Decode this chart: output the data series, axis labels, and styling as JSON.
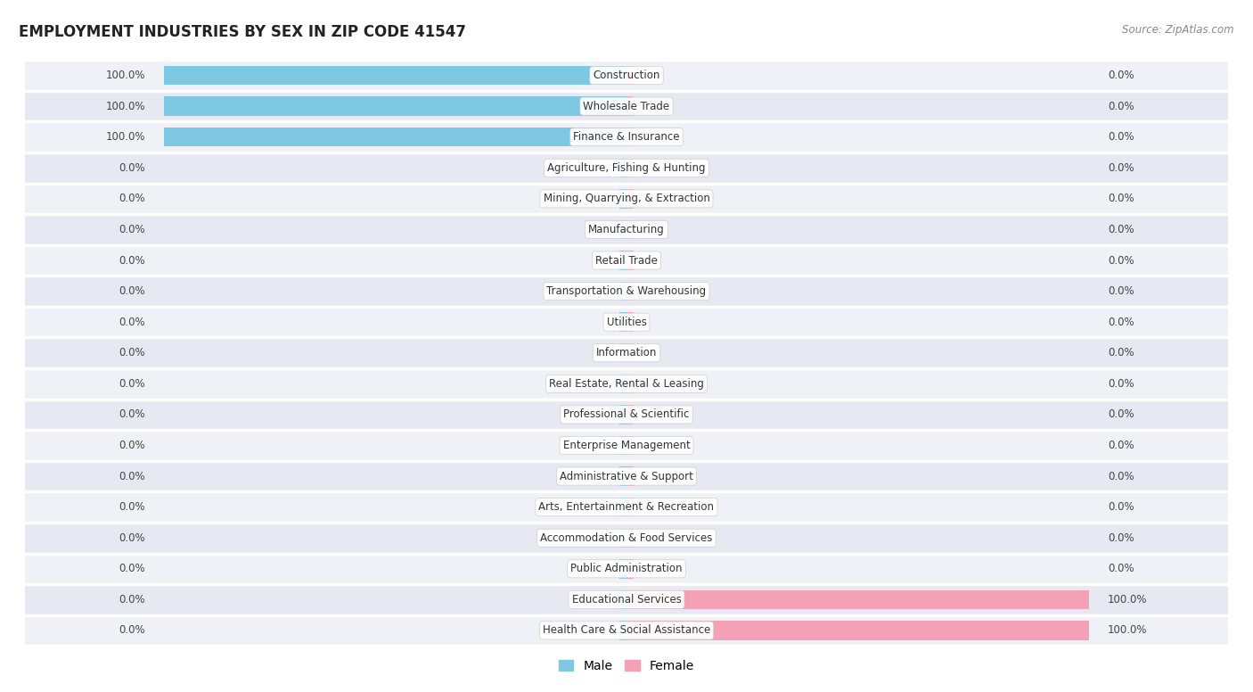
{
  "title": "EMPLOYMENT INDUSTRIES BY SEX IN ZIP CODE 41547",
  "source": "Source: ZipAtlas.com",
  "categories": [
    "Construction",
    "Wholesale Trade",
    "Finance & Insurance",
    "Agriculture, Fishing & Hunting",
    "Mining, Quarrying, & Extraction",
    "Manufacturing",
    "Retail Trade",
    "Transportation & Warehousing",
    "Utilities",
    "Information",
    "Real Estate, Rental & Leasing",
    "Professional & Scientific",
    "Enterprise Management",
    "Administrative & Support",
    "Arts, Entertainment & Recreation",
    "Accommodation & Food Services",
    "Public Administration",
    "Educational Services",
    "Health Care & Social Assistance"
  ],
  "male": [
    100,
    100,
    100,
    0,
    0,
    0,
    0,
    0,
    0,
    0,
    0,
    0,
    0,
    0,
    0,
    0,
    0,
    0,
    0
  ],
  "female": [
    0,
    0,
    0,
    0,
    0,
    0,
    0,
    0,
    0,
    0,
    0,
    0,
    0,
    0,
    0,
    0,
    0,
    100,
    100
  ],
  "male_color": "#7ec8e3",
  "female_color": "#f4a0b5",
  "title_fontsize": 12,
  "bar_height": 0.62,
  "background_color": "#ffffff",
  "row_colors": [
    "#f0f0f7",
    "#e8e8f2"
  ],
  "label_color_outside": "#555555",
  "label_color_inside": "#555555",
  "zero_stub": 1.5
}
